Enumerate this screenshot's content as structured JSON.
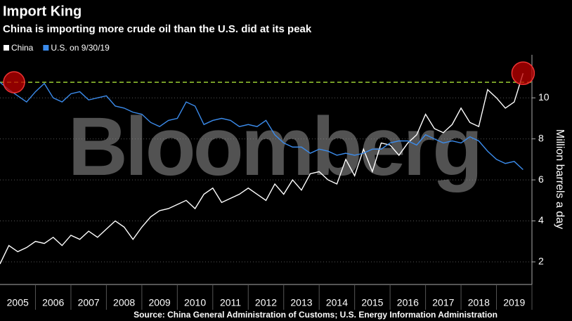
{
  "chart_data": {
    "type": "line",
    "title": "Import King",
    "subtitle": "China is importing more crude oil than the U.S. did at its peak",
    "y_label": "Million barrels a day",
    "source": "Source: China General Administration of Customs; U.S. Energy Information Administration",
    "watermark": "Bloomberg",
    "x": [
      2005,
      2005.25,
      2005.5,
      2005.75,
      2006,
      2006.25,
      2006.5,
      2006.75,
      2007,
      2007.25,
      2007.5,
      2007.75,
      2008,
      2008.25,
      2008.5,
      2008.75,
      2009,
      2009.25,
      2009.5,
      2009.75,
      2010,
      2010.25,
      2010.5,
      2010.75,
      2011,
      2011.25,
      2011.5,
      2011.75,
      2012,
      2012.25,
      2012.5,
      2012.75,
      2013,
      2013.25,
      2013.5,
      2013.75,
      2014,
      2014.25,
      2014.5,
      2014.75,
      2015,
      2015.25,
      2015.5,
      2015.75,
      2016,
      2016.25,
      2016.5,
      2016.75,
      2017,
      2017.25,
      2017.5,
      2017.75,
      2018,
      2018.25,
      2018.5,
      2018.75,
      2019,
      2019.25,
      2019.5,
      2019.75
    ],
    "series": [
      {
        "name": "China",
        "color": "#ffffff",
        "values": [
          1.9,
          2.8,
          2.5,
          2.7,
          3.0,
          2.9,
          3.2,
          2.8,
          3.3,
          3.1,
          3.5,
          3.2,
          3.6,
          4.0,
          3.7,
          3.1,
          3.7,
          4.2,
          4.5,
          4.6,
          4.8,
          5.0,
          4.6,
          5.3,
          5.6,
          4.9,
          5.1,
          5.3,
          5.6,
          5.3,
          5.0,
          5.8,
          5.3,
          6.0,
          5.5,
          6.3,
          6.4,
          6.0,
          5.8,
          7.0,
          6.2,
          7.5,
          6.4,
          7.8,
          7.7,
          7.2,
          7.8,
          8.2,
          9.2,
          8.5,
          8.3,
          8.7,
          9.5,
          8.8,
          8.6,
          10.4,
          10.0,
          9.5,
          9.8,
          11.2
        ]
      },
      {
        "name": "U.S. on 9/30/19",
        "color": "#3b8beb",
        "values": [
          10.76,
          10.4,
          10.1,
          9.8,
          10.3,
          10.7,
          10.0,
          9.8,
          10.2,
          10.3,
          9.9,
          10.0,
          10.1,
          9.6,
          9.5,
          9.3,
          9.2,
          8.8,
          8.6,
          8.9,
          9.0,
          9.8,
          9.6,
          8.7,
          8.9,
          9.0,
          8.9,
          8.6,
          8.7,
          8.6,
          8.9,
          8.2,
          7.8,
          7.6,
          7.6,
          7.3,
          7.5,
          7.4,
          7.2,
          7.3,
          7.2,
          7.3,
          7.5,
          7.5,
          7.8,
          7.9,
          7.9,
          7.7,
          8.2,
          8.0,
          7.8,
          7.9,
          7.8,
          8.1,
          7.9,
          7.4,
          7.0,
          6.8,
          6.9,
          6.5
        ]
      }
    ],
    "reference_line": {
      "value": 10.76,
      "color": "#9acd32"
    },
    "highlight_color": "#c00000",
    "xlim": [
      2005,
      2020
    ],
    "xticks": [
      {
        "value": 2005.5,
        "label": "2005"
      },
      {
        "value": 2006.5,
        "label": "2006"
      },
      {
        "value": 2007.5,
        "label": "2007"
      },
      {
        "value": 2008.5,
        "label": "2008"
      },
      {
        "value": 2009.5,
        "label": "2009"
      },
      {
        "value": 2010.5,
        "label": "2010"
      },
      {
        "value": 2011.5,
        "label": "2011"
      },
      {
        "value": 2012.5,
        "label": "2012"
      },
      {
        "value": 2013.5,
        "label": "2013"
      },
      {
        "value": 2014.5,
        "label": "2014"
      },
      {
        "value": 2015.5,
        "label": "2015"
      },
      {
        "value": 2016.5,
        "label": "2016"
      },
      {
        "value": 2017.5,
        "label": "2017"
      },
      {
        "value": 2018.5,
        "label": "2018"
      },
      {
        "value": 2019.5,
        "label": "2019"
      }
    ],
    "ylim": [
      0.9,
      12.1
    ],
    "yticks": [
      2,
      4,
      6,
      8,
      10
    ],
    "grid": true
  }
}
